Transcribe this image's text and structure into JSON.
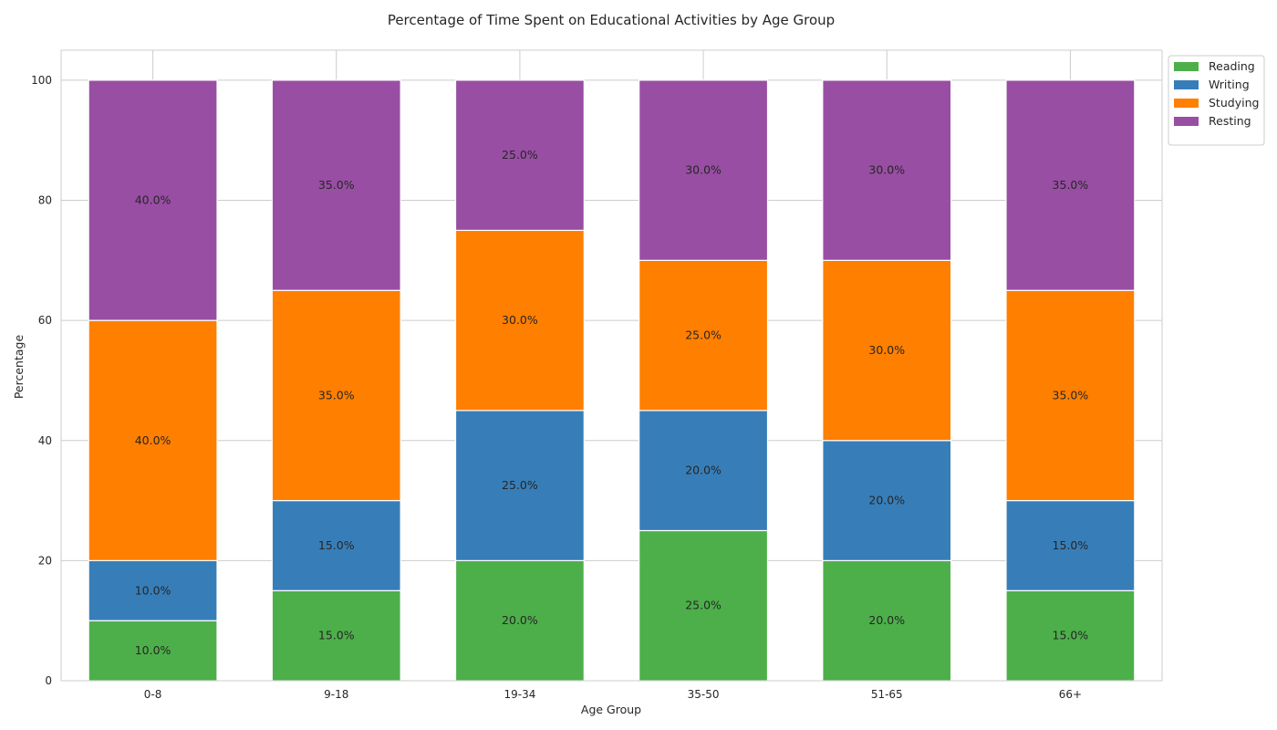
{
  "chart_data": {
    "type": "bar",
    "stacked": true,
    "title": "Percentage of Time Spent on Educational Activities by Age Group",
    "xlabel": "Age Group",
    "ylabel": "Percentage",
    "categories": [
      "0-8",
      "9-18",
      "19-34",
      "35-50",
      "51-65",
      "66+"
    ],
    "series": [
      {
        "name": "Reading",
        "color": "#4daf4a",
        "values": [
          10,
          15,
          20,
          25,
          20,
          15
        ]
      },
      {
        "name": "Writing",
        "color": "#377eb8",
        "values": [
          10,
          15,
          25,
          20,
          20,
          15
        ]
      },
      {
        "name": "Studying",
        "color": "#ff7f00",
        "values": [
          40,
          35,
          30,
          25,
          30,
          35
        ]
      },
      {
        "name": "Resting",
        "color": "#984ea3",
        "values": [
          40,
          35,
          25,
          30,
          30,
          35
        ]
      }
    ],
    "ylim": [
      0,
      105
    ],
    "yticks": [
      0,
      20,
      40,
      60,
      80,
      100
    ],
    "grid": true,
    "legend": "upper-right-outside",
    "data_label_format": "percent-one-decimal"
  }
}
